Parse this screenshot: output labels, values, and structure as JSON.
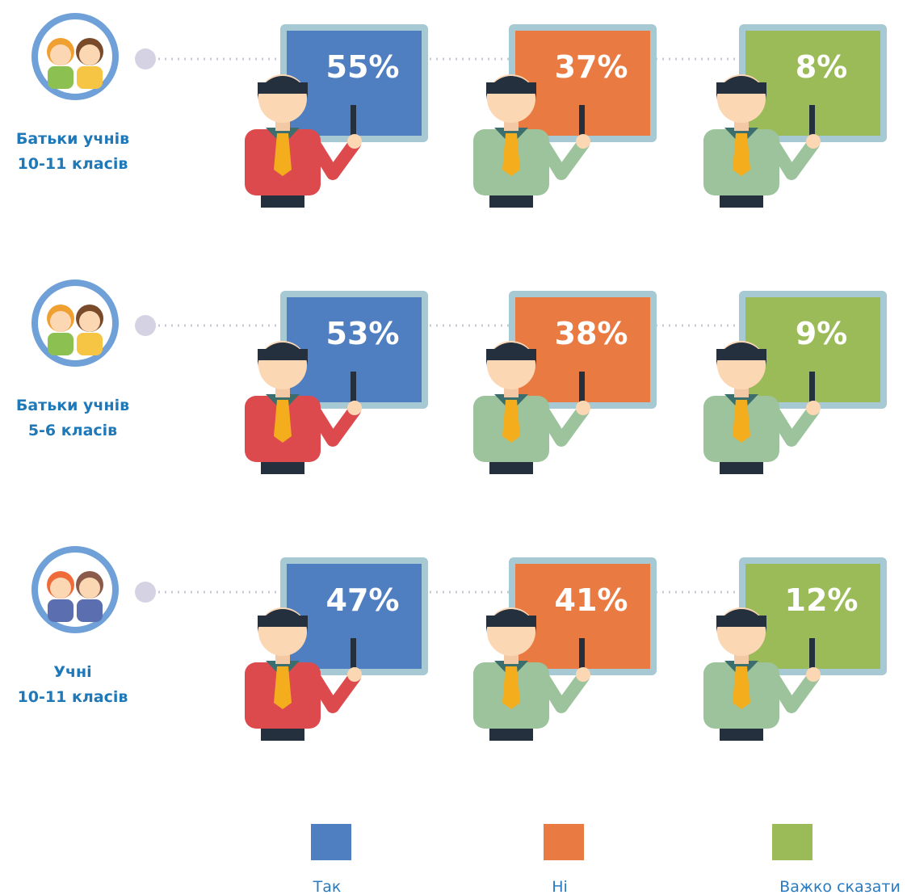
{
  "chart_data": {
    "type": "board",
    "categories": [
      "Батьки учнів\n10-11 класів",
      "Батьки учнів\n5-6 класів",
      "Учні\n10-11 класів"
    ],
    "series": [
      {
        "name": "Так",
        "color": "#4f7fc0",
        "values": [
          55,
          53,
          47
        ],
        "value_labels": [
          "55%",
          "53%",
          "47%"
        ]
      },
      {
        "name": "Ні",
        "color": "#e97a42",
        "values": [
          37,
          38,
          41
        ],
        "value_labels": [
          "37%",
          "38%",
          "41%"
        ]
      },
      {
        "name": "Важко сказати",
        "color": "#9bbb59",
        "values": [
          8,
          9,
          12
        ],
        "value_labels": [
          "8%",
          "9%",
          "12%"
        ]
      }
    ]
  }
}
